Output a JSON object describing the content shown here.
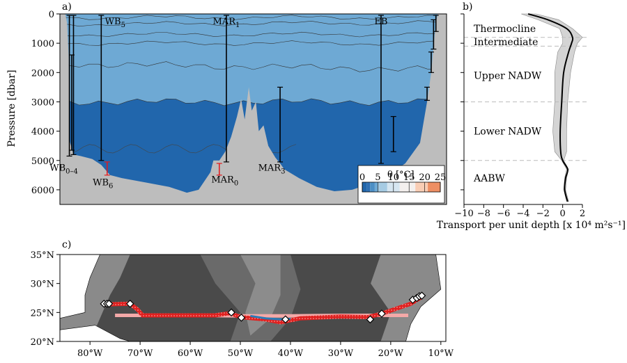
{
  "panels": {
    "a": "a)",
    "b": "b)",
    "c": "c)"
  },
  "chart_data": [
    {
      "type": "area",
      "panel": "a",
      "ylabel": "Pressure [dbar]",
      "ylim": [
        6500,
        0
      ],
      "yticks": [
        "0",
        "1000",
        "2000",
        "3000",
        "4000",
        "5000",
        "6000"
      ],
      "ytick_values": [
        0,
        1000,
        2000,
        3000,
        4000,
        5000,
        6000
      ],
      "x_extent_lon": [
        -78.5,
        -13.0
      ],
      "temperature_bands_degC": [
        {
          "from": 0,
          "to": 1.5,
          "color": "#2166ac"
        },
        {
          "from": 1.5,
          "to": 2.5,
          "color": "#2e6fb3"
        },
        {
          "from": 2.5,
          "to": 4,
          "color": "#4c8fc5"
        },
        {
          "from": 4,
          "to": 5,
          "color": "#6ea9d4"
        },
        {
          "from": 5,
          "to": 8,
          "color": "#a6cbe3"
        },
        {
          "from": 8,
          "to": 12,
          "color": "#d6e6f1"
        },
        {
          "from": 12,
          "to": 17,
          "color": "#f4f0ee"
        },
        {
          "from": 17,
          "to": 21,
          "color": "#f9cdb4"
        },
        {
          "from": 21,
          "to": 25,
          "color": "#ee8f64"
        }
      ],
      "isotherm_depths_dbar": [
        {
          "deg": 21,
          "west": 120,
          "east": 120
        },
        {
          "deg": 17,
          "west": 350,
          "east": 300
        },
        {
          "deg": 12,
          "west": 700,
          "east": 700
        },
        {
          "deg": 8,
          "west": 1000,
          "east": 1000
        },
        {
          "deg": 5,
          "west": 1700,
          "east": 1900
        },
        {
          "deg": 4,
          "west": 3000,
          "east": 3000
        }
      ],
      "colorbar": {
        "label": "θ [°C]",
        "ticks": [
          "0",
          "5",
          "10",
          "15",
          "20",
          "25"
        ],
        "tick_values": [
          0,
          5,
          10,
          15,
          20,
          25
        ],
        "range": [
          0,
          25
        ]
      },
      "moorings": [
        {
          "name": "WB5",
          "base": "WB",
          "sub": "5",
          "lon": -71.5,
          "top": 50,
          "bottom": 5000,
          "color": "#000000"
        },
        {
          "name": "MAR1",
          "base": "MAR",
          "sub": "1",
          "lon": -50.3,
          "top": 50,
          "bottom": 5050,
          "color": "#000000"
        },
        {
          "name": "EB",
          "base": "EB",
          "sub": "",
          "lon": -24.1,
          "top": 50,
          "bottom": 5100,
          "color": "#000000"
        },
        {
          "name": "WB0–4",
          "base": "WB",
          "sub": "0–4",
          "lon": -76.9,
          "top": 50,
          "bottom": 4850,
          "color": "#000000"
        },
        {
          "name": "WB6",
          "base": "WB",
          "sub": "6",
          "lon": -70.5,
          "top": 5050,
          "bottom": 5500,
          "color": "#e31a1c"
        },
        {
          "name": "MAR0",
          "base": "MAR",
          "sub": "0",
          "lon": -51.5,
          "top": 5100,
          "bottom": 5500,
          "color": "#e31a1c"
        },
        {
          "name": "MAR3",
          "base": "MAR",
          "sub": "3",
          "lon": -41.2,
          "top": 2500,
          "bottom": 5050,
          "color": "#000000"
        },
        {
          "name": "",
          "lon": -22.0,
          "top": 3500,
          "bottom": 4700,
          "color": "#000000"
        },
        {
          "name": "",
          "lon": -16.3,
          "top": 2500,
          "bottom": 2950,
          "color": "#000000"
        },
        {
          "name": "",
          "lon": -15.6,
          "top": 1300,
          "bottom": 2000,
          "color": "#000000"
        },
        {
          "name": "",
          "lon": -15.2,
          "top": 200,
          "bottom": 1200,
          "color": "#000000"
        },
        {
          "name": "",
          "lon": -14.8,
          "top": 50,
          "bottom": 600,
          "color": "#000000"
        },
        {
          "name": "",
          "lon": -76.2,
          "top": 50,
          "bottom": 4800,
          "color": "#000000"
        },
        {
          "name": "",
          "lon": -76.5,
          "top": 1400,
          "bottom": 4650,
          "color": "#000000"
        }
      ]
    },
    {
      "type": "line",
      "panel": "b",
      "xlabel": "Transport per unit depth [x 10⁴ m²s⁻¹]",
      "xlim": [
        -10,
        2
      ],
      "xticks": [
        "−10",
        "−8",
        "−6",
        "−4",
        "−2",
        "0",
        "2"
      ],
      "xtick_values": [
        -10,
        -8,
        -6,
        -4,
        -2,
        0,
        2
      ],
      "ylim": [
        6500,
        0
      ],
      "layer_boundaries_dbar": [
        800,
        1100,
        3000,
        5000
      ],
      "layers": [
        {
          "label": "Thermocline",
          "p": 500
        },
        {
          "label": "Intermediate",
          "p": 950
        },
        {
          "label": "Upper NADW",
          "p": 2100
        },
        {
          "label": "Lower NADW",
          "p": 4000
        },
        {
          "label": "AABW",
          "p": 5600
        }
      ],
      "mean": {
        "p": [
          0,
          200,
          500,
          800,
          1000,
          1300,
          2000,
          3000,
          4000,
          4700,
          5000,
          5300,
          5600,
          6000,
          6400
        ],
        "value": [
          -3.5,
          -1.5,
          0.4,
          1.0,
          0.9,
          0.6,
          0.1,
          -0.1,
          -0.25,
          -0.2,
          0.0,
          0.5,
          0.3,
          0.2,
          0.5
        ]
      },
      "band_min": [
        -4.2,
        -2.5,
        -0.3,
        0.0,
        0.0,
        -0.5,
        -0.8,
        -0.8,
        -1.0,
        -0.8,
        -0.1,
        0.4,
        0.2,
        0.1,
        0.4
      ],
      "band_max": [
        -2.7,
        -0.4,
        1.0,
        2.0,
        1.5,
        1.2,
        0.8,
        0.5,
        0.4,
        0.4,
        0.1,
        0.6,
        0.4,
        0.3,
        0.6
      ]
    },
    {
      "type": "scatter",
      "panel": "c",
      "xlim": [
        -86,
        -9
      ],
      "ylim": [
        20,
        35
      ],
      "xticks": [
        "80°W",
        "70°W",
        "60°W",
        "50°W",
        "40°W",
        "30°W",
        "20°W",
        "10°W"
      ],
      "xtick_values": [
        -80,
        -70,
        -60,
        -50,
        -40,
        -30,
        -20,
        -10
      ],
      "yticks": [
        "20°N",
        "25°N",
        "30°N",
        "35°N"
      ],
      "ytick_values": [
        20,
        25,
        30,
        35
      ],
      "moorings": {
        "lon": [
          -77.2,
          -76.6,
          -76.2,
          -72.0,
          -51.8,
          -49.8,
          -41.0,
          -24.1,
          -21.8,
          -15.6,
          -14.8,
          -14.3,
          -13.8
        ],
        "lat": [
          26.5,
          26.5,
          26.5,
          26.5,
          25.0,
          24.1,
          23.8,
          23.8,
          24.8,
          27.2,
          27.5,
          27.8,
          27.9
        ]
      },
      "section_red": {
        "lon": [
          -77.0,
          -72.0,
          -70.5,
          -69.5,
          -55.0,
          -52.0,
          -50.0,
          -45.0,
          -42.0,
          -38.0,
          -30.0,
          -24.5,
          -21.8,
          -16.0,
          -14.0
        ],
        "lat": [
          26.4,
          26.5,
          25.5,
          24.5,
          24.5,
          24.9,
          24.2,
          23.8,
          23.3,
          24.0,
          24.3,
          24.2,
          24.8,
          26.5,
          27.6
        ]
      },
      "section_blue": {
        "lon": [
          -48.0,
          -45.0,
          -42.0,
          -40.0
        ],
        "lat": [
          24.4,
          24.0,
          23.8,
          23.9
        ]
      },
      "section_pink": {
        "lon": [
          -75.0,
          -70.0,
          -60.0,
          -50.0,
          -40.0,
          -30.0,
          -20.0,
          -16.5
        ],
        "lat": [
          24.5,
          24.5,
          24.5,
          24.4,
          24.4,
          24.5,
          24.5,
          24.5
        ]
      }
    }
  ]
}
